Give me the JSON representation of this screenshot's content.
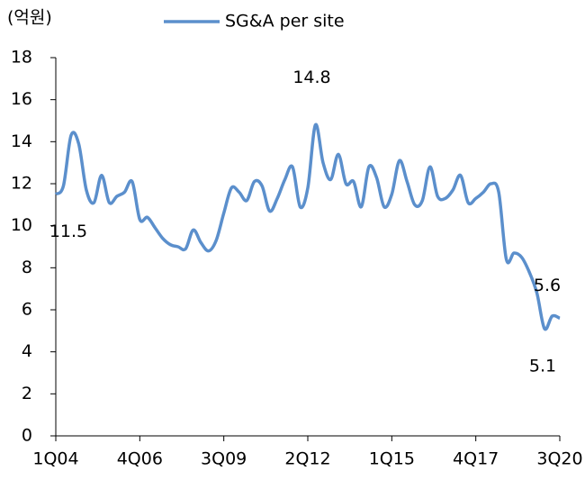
{
  "chart_data": {
    "type": "line",
    "y_axis_label": "(억원)",
    "categories": [
      "1Q04",
      null,
      null,
      null,
      null,
      null,
      null,
      null,
      null,
      null,
      null,
      "4Q06",
      null,
      null,
      null,
      null,
      null,
      null,
      null,
      null,
      null,
      null,
      "3Q09",
      null,
      null,
      null,
      null,
      null,
      null,
      null,
      null,
      null,
      null,
      "2Q12",
      null,
      null,
      null,
      null,
      null,
      null,
      null,
      null,
      null,
      null,
      "1Q15",
      null,
      null,
      null,
      null,
      null,
      null,
      null,
      null,
      null,
      null,
      "4Q17",
      null,
      null,
      null,
      null,
      null,
      null,
      null,
      null,
      null,
      null,
      "3Q20"
    ],
    "series": [
      {
        "name": "SG&A per site",
        "color": "#5b8fcc",
        "values": [
          11.5,
          11.9,
          14.3,
          13.9,
          11.7,
          11.1,
          12.4,
          11.1,
          11.4,
          11.6,
          12.1,
          10.3,
          10.4,
          9.9,
          9.4,
          9.1,
          9.0,
          8.9,
          9.8,
          9.2,
          8.8,
          9.3,
          10.6,
          11.8,
          11.6,
          11.2,
          12.1,
          11.9,
          10.7,
          11.3,
          12.2,
          12.8,
          10.9,
          11.8,
          14.8,
          13.0,
          12.2,
          13.4,
          12.0,
          12.1,
          10.9,
          12.8,
          12.3,
          10.9,
          11.5,
          13.1,
          12.1,
          11.0,
          11.2,
          12.8,
          11.4,
          11.3,
          11.7,
          12.4,
          11.1,
          11.3,
          11.6,
          12.0,
          11.6,
          8.4,
          8.7,
          8.5,
          7.8,
          6.8,
          5.1,
          5.7,
          5.6
        ],
        "value_labels": [
          "11.5",
          null,
          null,
          null,
          null,
          null,
          null,
          null,
          null,
          null,
          null,
          null,
          null,
          null,
          null,
          null,
          null,
          null,
          null,
          null,
          null,
          null,
          null,
          null,
          null,
          null,
          null,
          null,
          null,
          null,
          null,
          null,
          null,
          null,
          "14.8",
          null,
          null,
          null,
          null,
          null,
          null,
          null,
          null,
          null,
          null,
          null,
          null,
          null,
          null,
          null,
          null,
          null,
          null,
          null,
          null,
          null,
          null,
          null,
          null,
          null,
          null,
          null,
          null,
          null,
          "5.1",
          null,
          "5.6"
        ]
      }
    ],
    "ylim": [
      0,
      18
    ],
    "yticks": [
      0,
      2,
      4,
      6,
      8,
      10,
      12,
      14,
      16,
      18
    ],
    "legend": "top"
  }
}
